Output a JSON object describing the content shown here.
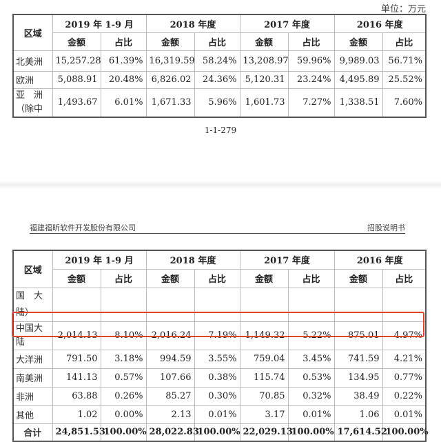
{
  "unit_label": "单位：万元",
  "page_number": "1-1-279",
  "page_header": {
    "company": "福建福昕软件开发股份有限公司",
    "doc_type": "招股说明书"
  },
  "columns": {
    "region": "区域",
    "periods": [
      "2019 年 1-9 月",
      "2018 年度",
      "2017 年度",
      "2016 年度"
    ],
    "amount": "金额",
    "ratio": "占比"
  },
  "table1_rows": [
    {
      "region": "北美洲",
      "values": [
        "15,257.28",
        "61.39%",
        "16,319.59",
        "58.24%",
        "13,208.97",
        "59.96%",
        "9,989.03",
        "56.71%"
      ]
    },
    {
      "region": "欧洲",
      "values": [
        "5,088.91",
        "20.48%",
        "6,826.02",
        "24.36%",
        "5,120.31",
        "23.24%",
        "4,495.89",
        "25.52%"
      ]
    },
    {
      "region": "亚　洲（除中",
      "values": [
        "1,493.67",
        "6.01%",
        "1,671.33",
        "5.96%",
        "1,601.73",
        "7.27%",
        "1,338.51",
        "7.60%"
      ]
    }
  ],
  "table2_cont_region": "国　大陆）",
  "table2_rows": [
    {
      "region": "中国大陆",
      "values": [
        "2,014.13",
        "8.10%",
        "2,016.24",
        "7.19%",
        "1,149.32",
        "5.22%",
        "875.01",
        "4.97%"
      ]
    },
    {
      "region": "大洋洲",
      "values": [
        "791.50",
        "3.18%",
        "994.59",
        "3.55%",
        "759.04",
        "3.45%",
        "741.59",
        "4.21%"
      ]
    },
    {
      "region": "南美洲",
      "values": [
        "141.13",
        "0.57%",
        "107.66",
        "0.38%",
        "115.74",
        "0.53%",
        "134.95",
        "0.77%"
      ]
    },
    {
      "region": "非洲",
      "values": [
        "63.88",
        "0.26%",
        "85.27",
        "0.30%",
        "70.85",
        "0.32%",
        "38.49",
        "0.22%"
      ]
    },
    {
      "region": "其他",
      "values": [
        "1.02",
        "0.00%",
        "2.13",
        "0.01%",
        "3.17",
        "0.01%",
        "1.06",
        "0.01%"
      ]
    }
  ],
  "total": {
    "region": "合计",
    "values": [
      "24,851.53",
      "100.00%",
      "28,022.83",
      "100.00%",
      "22,029.13",
      "100.00%",
      "17,614.52",
      "100.00%"
    ]
  },
  "highlight_color": "#e0442a"
}
